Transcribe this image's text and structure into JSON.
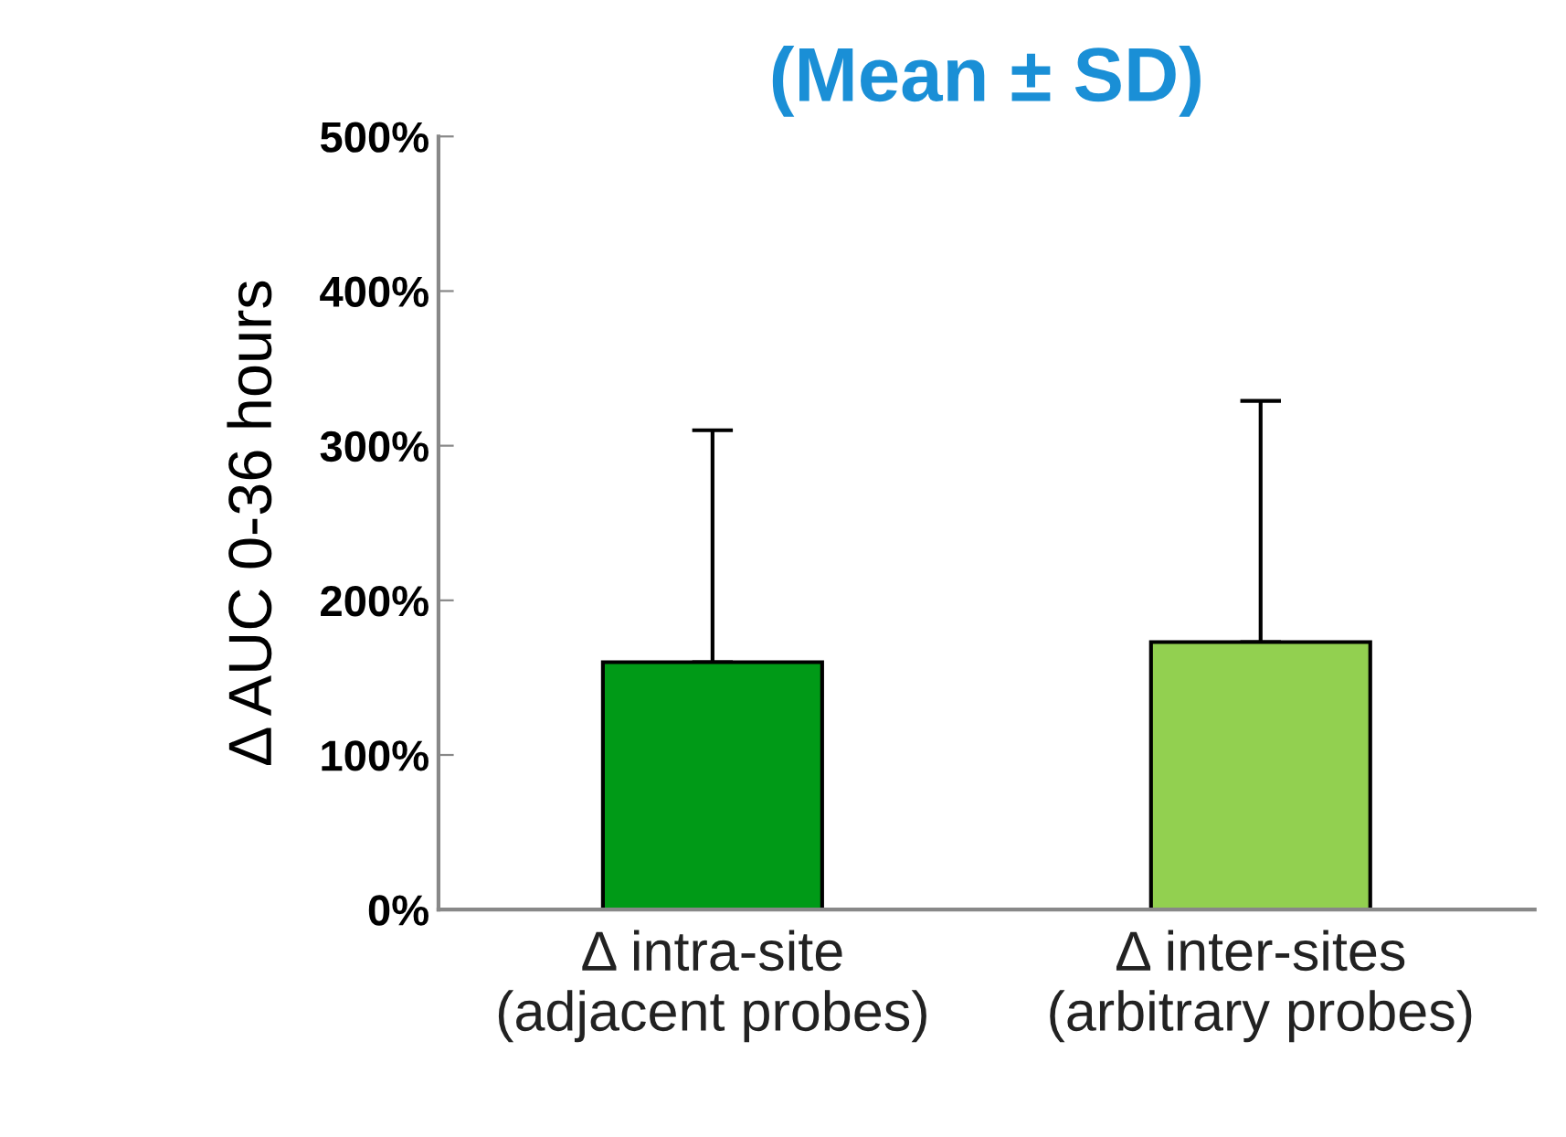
{
  "chart_data": {
    "type": "bar",
    "title": "(Mean ± SD)",
    "ylabel": "Δ AUC 0-36 hours",
    "categories": [
      "Δ intra-site\n(adjacent probes)",
      "Δ inter-sites\n(arbitrary probes)"
    ],
    "values": [
      160,
      173
    ],
    "colors": [
      "#009a17",
      "#92d050"
    ],
    "errors": [
      [
        160,
        310
      ],
      [
        173,
        329
      ]
    ],
    "ylim": [
      0,
      500
    ],
    "yticks": [
      {
        "value": 0,
        "label": "0%"
      },
      {
        "value": 100,
        "label": "100%"
      },
      {
        "value": 200,
        "label": "200%"
      },
      {
        "value": 300,
        "label": "300%"
      },
      {
        "value": 400,
        "label": "400%"
      },
      {
        "value": 500,
        "label": "500%"
      }
    ],
    "grid": false,
    "legend": false
  }
}
